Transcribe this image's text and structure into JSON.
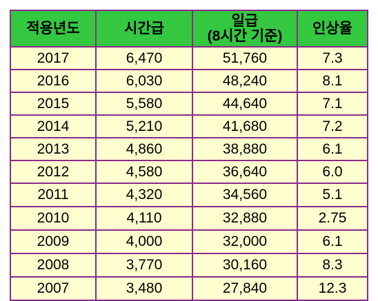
{
  "headers": {
    "year": "적용년도",
    "hourly": "시간급",
    "daily": "일급",
    "daily_sub": "(8시간 기준)",
    "rate": "인상율"
  },
  "rows": [
    {
      "year": "2017",
      "hourly": "6,470",
      "daily": "51,760",
      "rate": "7.3"
    },
    {
      "year": "2016",
      "hourly": "6,030",
      "daily": "48,240",
      "rate": "8.1"
    },
    {
      "year": "2015",
      "hourly": "5,580",
      "daily": "44,640",
      "rate": "7.1"
    },
    {
      "year": "2014",
      "hourly": "5,210",
      "daily": "41,680",
      "rate": "7.2"
    },
    {
      "year": "2013",
      "hourly": "4,860",
      "daily": "38,880",
      "rate": "6.1"
    },
    {
      "year": "2012",
      "hourly": "4,580",
      "daily": "36,640",
      "rate": "6.0"
    },
    {
      "year": "2011",
      "hourly": "4,320",
      "daily": "34,560",
      "rate": "5.1"
    },
    {
      "year": "2010",
      "hourly": "4,110",
      "daily": "32,880",
      "rate": "2.75"
    },
    {
      "year": "2009",
      "hourly": "4,000",
      "daily": "32,000",
      "rate": "6.1"
    },
    {
      "year": "2008",
      "hourly": "3,770",
      "daily": "30,160",
      "rate": "8.3"
    },
    {
      "year": "2007",
      "hourly": "3,480",
      "daily": "27,840",
      "rate": "12.3"
    }
  ],
  "colors": {
    "header_bg": "#34c840",
    "cell_bg": "#ffffd0",
    "border": "#8a2a8c"
  }
}
